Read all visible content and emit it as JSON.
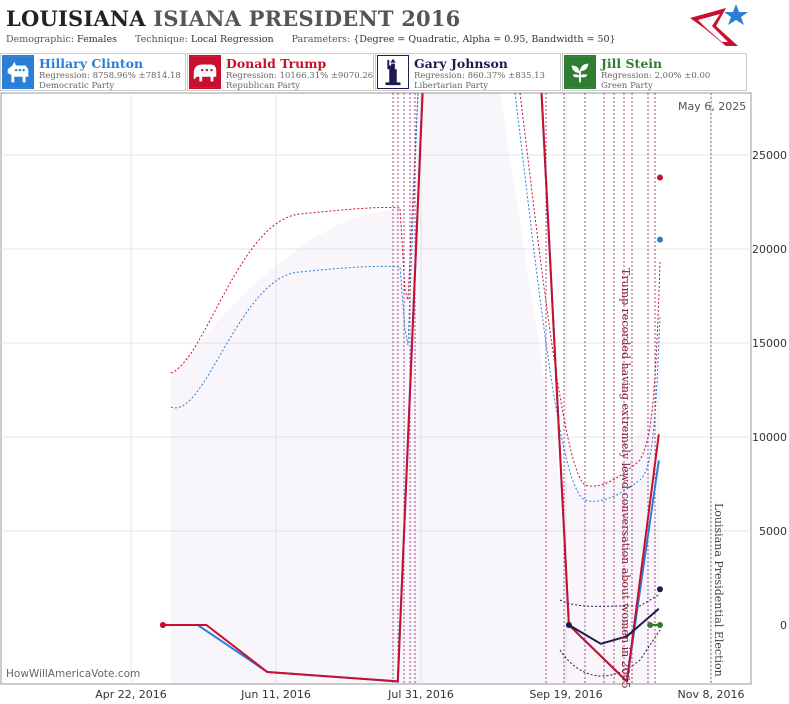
{
  "header": {
    "state": "LOUISIANA",
    "race": "ISIANA PRESIDENT 2016",
    "demographic_label": "Demographic:",
    "demographic_value": "Females",
    "technique_label": "Technique:",
    "technique_value": "Local Regression",
    "parameters_label": "Parameters:",
    "parameters_value": "{Degree = Quadratic, Alpha = 0.95, Bandwidth = 50}"
  },
  "candidates": [
    {
      "name": "Hillary Clinton",
      "regression": "Regression: 8758.96% ±7814.18",
      "party": "Democratic Party",
      "color": "#2a7fd4",
      "icon": "donkey-icon"
    },
    {
      "name": "Donald Trump",
      "regression": "Regression: 10166.31% ±9070.26",
      "party": "Republican Party",
      "color": "#c8102e",
      "icon": "elephant-icon"
    },
    {
      "name": "Gary Johnson",
      "regression": "Regression: 860.37% ±835.13",
      "party": "Libertarian Party",
      "color": "#1f1a4d",
      "icon": "statue-of-liberty-icon"
    },
    {
      "name": "Jill Stein",
      "regression": "Regression: 2.00% ±0.00",
      "party": "Green Party",
      "color": "#2e7d32",
      "icon": "plant-icon"
    }
  ],
  "date_stamp": "May 6, 2025",
  "watermark": "HowWillAmericaVote.com",
  "chart_data": {
    "type": "line",
    "x_ticks": [
      "Apr 22, 2016",
      "Jun 11, 2016",
      "Jul 31, 2016",
      "Sep 19, 2016",
      "Nov 8, 2016"
    ],
    "y_ticks": [
      "0",
      "5000",
      "10000",
      "15000",
      "20000",
      "25000"
    ],
    "ylim": [
      -3300,
      28000
    ],
    "annotations": [
      {
        "text": "Trump recorded having extremely lewd conversation about women in 2005",
        "date": "Oct 7, 2016"
      },
      {
        "text": "Louisiana Presidential Election",
        "date": "Nov 8, 2016"
      }
    ],
    "series": [
      {
        "name": "Hillary Clinton",
        "color": "#2a7fd4",
        "points": [
          [
            "May 3, 2016",
            0
          ],
          [
            "May 15, 2016",
            0
          ],
          [
            "Jun 8, 2016",
            -2500
          ],
          [
            "Jul 23, 2016",
            -3000
          ],
          [
            "Aug 1, 2016",
            30000
          ],
          [
            "Sep 10, 2016",
            30000
          ],
          [
            "Sep 20, 2016",
            0
          ],
          [
            "Oct 10, 2016",
            -3000
          ],
          [
            "Oct 21, 2016",
            8750
          ]
        ],
        "final": 20500
      },
      {
        "name": "Donald Trump",
        "color": "#c8102e",
        "points": [
          [
            "May 3, 2016",
            0
          ],
          [
            "May 18, 2016",
            0
          ],
          [
            "Jun 8, 2016",
            -2500
          ],
          [
            "Jul 23, 2016",
            -3000
          ],
          [
            "Aug 1, 2016",
            30000
          ],
          [
            "Sep 10, 2016",
            30000
          ],
          [
            "Sep 20, 2016",
            0
          ],
          [
            "Oct 10, 2016",
            -3000
          ],
          [
            "Oct 21, 2016",
            10150
          ]
        ],
        "final": 23800
      },
      {
        "name": "Gary Johnson",
        "color": "#1f1a4d",
        "points": [
          [
            "Sep 20, 2016",
            0
          ],
          [
            "Oct 1, 2016",
            -1000
          ],
          [
            "Oct 10, 2016",
            -600
          ],
          [
            "Oct 21, 2016",
            860
          ]
        ],
        "final": 1900
      },
      {
        "name": "Jill Stein",
        "color": "#2e7d32",
        "points": [
          [
            "Oct 18, 2016",
            2
          ],
          [
            "Oct 21, 2016",
            2
          ]
        ],
        "final": 2
      }
    ]
  }
}
